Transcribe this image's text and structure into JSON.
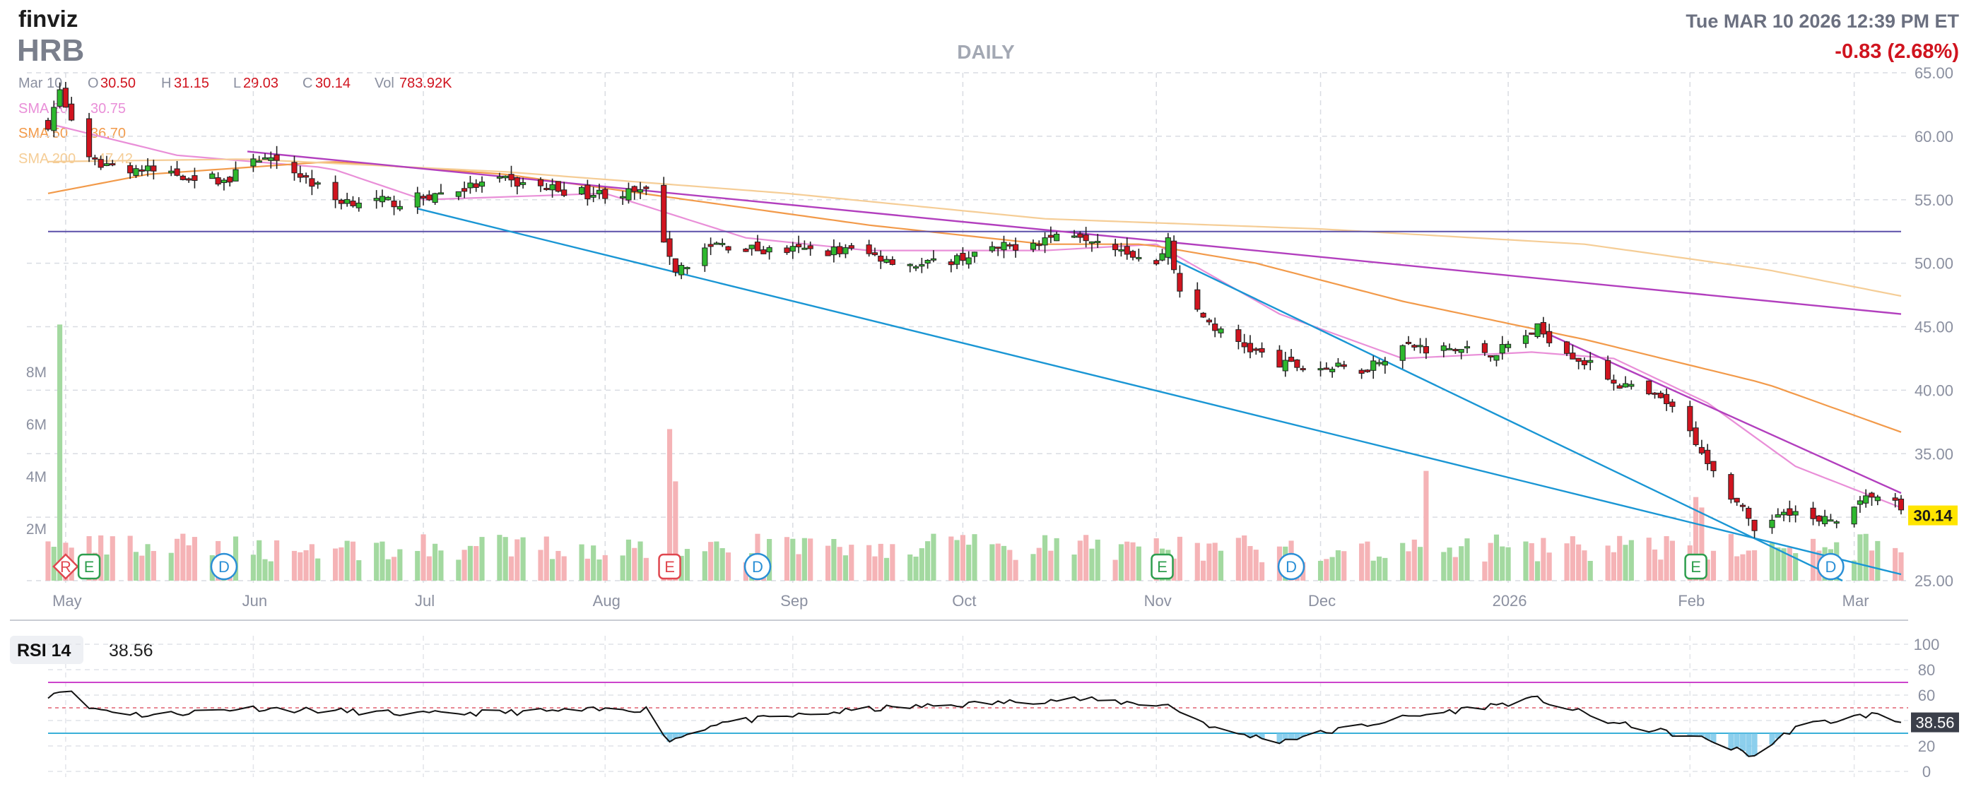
{
  "header": {
    "brand": "finviz",
    "ticker": "HRB",
    "period": "DAILY",
    "datetime": "Tue MAR 10 2026 12:39 PM ET",
    "change": "-0.83 (2.68%)"
  },
  "ohlc": {
    "date": "Mar 10",
    "o_label": "O",
    "o_value": "30.50",
    "h_label": "H",
    "h_value": "31.15",
    "l_label": "L",
    "l_value": "29.03",
    "c_label": "C",
    "c_value": "30.14",
    "vol_label": "Vol",
    "vol_value": "783.92K"
  },
  "sma_legend": [
    {
      "label": "SMA 20",
      "value": "30.75",
      "color": "#e98fd8"
    },
    {
      "label": "SMA 50",
      "value": "36.70",
      "color": "#f29a4a"
    },
    {
      "label": "SMA 200",
      "value": "47.42",
      "color": "#f5cd96"
    }
  ],
  "price_axis": {
    "labels": [
      "65.00",
      "60.00",
      "55.00",
      "50.00",
      "45.00",
      "40.00",
      "35.00",
      "30.00",
      "25.00"
    ],
    "last_price": "30.14"
  },
  "volume_axis": {
    "labels": [
      "8M",
      "6M",
      "4M",
      "2M"
    ]
  },
  "x_axis": {
    "labels": [
      "May",
      "Jun",
      "Jul",
      "Aug",
      "Sep",
      "Oct",
      "Nov",
      "Dec",
      "2026",
      "Feb",
      "Mar"
    ]
  },
  "events": [
    {
      "type": "R",
      "label": "R"
    },
    {
      "type": "E",
      "label": "E"
    },
    {
      "type": "D",
      "label": "D"
    },
    {
      "type": "E",
      "label": "E"
    },
    {
      "type": "D",
      "label": "D"
    },
    {
      "type": "E",
      "label": "E"
    },
    {
      "type": "D",
      "label": "D"
    },
    {
      "type": "E",
      "label": "E"
    },
    {
      "type": "D",
      "label": "D"
    }
  ],
  "rsi": {
    "label": "RSI 14",
    "value": "38.56",
    "axis_labels": [
      "100",
      "80",
      "60",
      "40",
      "20",
      "0"
    ],
    "levels": [
      30,
      70
    ]
  },
  "colors": {
    "up": "#2eb82e",
    "down": "#d0141f",
    "vol_up": "#a3d9a0",
    "vol_down": "#f5b3b6",
    "trend_magenta": "#b23fbe",
    "trend_blue": "#1a96d4",
    "hline": "#5a4fa8",
    "rsi_line": "#111111",
    "rsi_fill": "#6fc3e8",
    "last_price_bg": "#ffe500"
  },
  "chart_data": [
    {
      "type": "candlestick",
      "title": "HRB",
      "subtitle": "DAILY",
      "x_ticks": [
        "May",
        "Jun",
        "Jul",
        "Aug",
        "Sep",
        "Oct",
        "Nov",
        "Dec",
        "2026",
        "Feb",
        "Mar"
      ],
      "ylim": [
        25,
        65
      ],
      "y_ticks": [
        65,
        60,
        55,
        50,
        45,
        40,
        35,
        30,
        25
      ],
      "last_close": 30.14,
      "close_keypoints": [
        {
          "date": "2025-04-28",
          "close": 61.0
        },
        {
          "date": "2025-04-30",
          "close": 63.5
        },
        {
          "date": "2025-05-05",
          "close": 58.0
        },
        {
          "date": "2025-05-15",
          "close": 57.3
        },
        {
          "date": "2025-05-29",
          "close": 56.5
        },
        {
          "date": "2025-06-02",
          "close": 58.5
        },
        {
          "date": "2025-06-10",
          "close": 57.0
        },
        {
          "date": "2025-06-16",
          "close": 55.0
        },
        {
          "date": "2025-06-27",
          "close": 54.8
        },
        {
          "date": "2025-07-14",
          "close": 56.5
        },
        {
          "date": "2025-07-29",
          "close": 55.5
        },
        {
          "date": "2025-08-08",
          "close": 55.5
        },
        {
          "date": "2025-08-11",
          "close": 52.0
        },
        {
          "date": "2025-08-13",
          "close": 49.5
        },
        {
          "date": "2025-08-20",
          "close": 51.5
        },
        {
          "date": "2025-08-28",
          "close": 51.0
        },
        {
          "date": "2025-09-12",
          "close": 51.0
        },
        {
          "date": "2025-09-24",
          "close": 49.8
        },
        {
          "date": "2025-10-06",
          "close": 51.0
        },
        {
          "date": "2025-10-20",
          "close": 52.5
        },
        {
          "date": "2025-10-27",
          "close": 51.5
        },
        {
          "date": "2025-11-03",
          "close": 49.8
        },
        {
          "date": "2025-11-05",
          "close": 52.0
        },
        {
          "date": "2025-11-07",
          "close": 47.5
        },
        {
          "date": "2025-11-14",
          "close": 44.5
        },
        {
          "date": "2025-11-24",
          "close": 42.0
        },
        {
          "date": "2025-12-08",
          "close": 41.6
        },
        {
          "date": "2025-12-15",
          "close": 43.5
        },
        {
          "date": "2025-12-31",
          "close": 43.0
        },
        {
          "date": "2026-01-07",
          "close": 44.8
        },
        {
          "date": "2026-01-14",
          "close": 42.5
        },
        {
          "date": "2026-01-21",
          "close": 40.5
        },
        {
          "date": "2026-01-29",
          "close": 39.0
        },
        {
          "date": "2026-02-03",
          "close": 36.0
        },
        {
          "date": "2026-02-06",
          "close": 33.5
        },
        {
          "date": "2026-02-11",
          "close": 30.5
        },
        {
          "date": "2026-02-13",
          "close": 28.5
        },
        {
          "date": "2026-02-18",
          "close": 30.8
        },
        {
          "date": "2026-02-24",
          "close": 29.5
        },
        {
          "date": "2026-03-02",
          "close": 30.5
        },
        {
          "date": "2026-03-05",
          "close": 31.8
        },
        {
          "date": "2026-03-09",
          "close": 31.0
        },
        {
          "date": "2026-03-10",
          "close": 30.14
        }
      ],
      "sma": [
        {
          "name": "SMA 20",
          "last": 30.75,
          "keypoints": [
            [
              "2025-04-28",
              61
            ],
            [
              "2025-05-20",
              58.5
            ],
            [
              "2025-06-15",
              57.5
            ],
            [
              "2025-07-01",
              55
            ],
            [
              "2025-08-01",
              55.5
            ],
            [
              "2025-08-25",
              52
            ],
            [
              "2025-09-15",
              51
            ],
            [
              "2025-10-15",
              51
            ],
            [
              "2025-11-03",
              51.5
            ],
            [
              "2025-11-24",
              46
            ],
            [
              "2025-12-15",
              42.5
            ],
            [
              "2026-01-06",
              43
            ],
            [
              "2026-01-20",
              42.5
            ],
            [
              "2026-02-05",
              39
            ],
            [
              "2026-02-20",
              34
            ],
            [
              "2026-03-10",
              30.75
            ]
          ]
        },
        {
          "name": "SMA 50",
          "last": 36.7,
          "keypoints": [
            [
              "2025-04-28",
              55.5
            ],
            [
              "2025-05-15",
              57
            ],
            [
              "2025-06-15",
              58
            ],
            [
              "2025-07-15",
              57
            ],
            [
              "2025-08-15",
              55
            ],
            [
              "2025-09-15",
              53
            ],
            [
              "2025-10-15",
              51.5
            ],
            [
              "2025-11-01",
              51.5
            ],
            [
              "2025-11-20",
              50
            ],
            [
              "2025-12-15",
              47
            ],
            [
              "2026-01-15",
              44
            ],
            [
              "2026-02-15",
              40.5
            ],
            [
              "2026-03-10",
              36.7
            ]
          ]
        },
        {
          "name": "SMA 200",
          "last": 47.42,
          "keypoints": [
            [
              "2025-04-28",
              58
            ],
            [
              "2025-06-01",
              58.2
            ],
            [
              "2025-07-15",
              57.2
            ],
            [
              "2025-09-01",
              55.5
            ],
            [
              "2025-10-15",
              53.5
            ],
            [
              "2025-12-01",
              52.7
            ],
            [
              "2026-01-15",
              51.5
            ],
            [
              "2026-02-15",
              49.5
            ],
            [
              "2026-03-10",
              47.42
            ]
          ]
        }
      ],
      "horizontal_line": 52.5,
      "trendlines": [
        {
          "color": "magenta",
          "points": [
            [
              "2025-06-01",
              58.8
            ],
            [
              "2026-03-10",
              46.0
            ]
          ]
        },
        {
          "color": "magenta",
          "points": [
            [
              "2026-01-07",
              44.8
            ],
            [
              "2026-03-10",
              31.9
            ]
          ]
        },
        {
          "color": "blue",
          "points": [
            [
              "2025-06-30",
              54.3
            ],
            [
              "2026-03-10",
              25.5
            ]
          ]
        },
        {
          "color": "blue",
          "points": [
            [
              "2025-11-05",
              50.5
            ],
            [
              "2026-02-28",
              25.0
            ]
          ]
        }
      ]
    },
    {
      "type": "bar",
      "title": "Volume",
      "ylim": [
        0,
        10000000
      ],
      "y_ticks": [
        "8M",
        "6M",
        "4M",
        "2M"
      ],
      "last": "783.92K",
      "spikes": [
        {
          "date": "2025-04-30",
          "volume": 9800000
        },
        {
          "date": "2025-08-12",
          "volume": 5800000
        },
        {
          "date": "2025-08-13",
          "volume": 3800000
        },
        {
          "date": "2025-12-19",
          "volume": 4200000
        },
        {
          "date": "2026-02-03",
          "volume": 3200000
        },
        {
          "date": "2026-02-04",
          "volume": 2800000
        }
      ]
    },
    {
      "type": "line",
      "title": "RSI 14",
      "ylim": [
        0,
        100
      ],
      "y_ticks": [
        100,
        80,
        60,
        40,
        20,
        0
      ],
      "reference_levels": [
        30,
        70
      ],
      "last": 38.56,
      "keypoints": [
        {
          "date": "2025-04-28",
          "value": 60
        },
        {
          "date": "2025-05-01",
          "value": 65
        },
        {
          "date": "2025-05-05",
          "value": 50
        },
        {
          "date": "2025-05-15",
          "value": 44
        },
        {
          "date": "2025-06-01",
          "value": 50
        },
        {
          "date": "2025-07-01",
          "value": 45
        },
        {
          "date": "2025-08-08",
          "value": 49
        },
        {
          "date": "2025-08-12",
          "value": 24
        },
        {
          "date": "2025-08-20",
          "value": 38
        },
        {
          "date": "2025-09-15",
          "value": 49
        },
        {
          "date": "2025-10-20",
          "value": 57
        },
        {
          "date": "2025-11-05",
          "value": 52
        },
        {
          "date": "2025-11-14",
          "value": 32
        },
        {
          "date": "2025-11-24",
          "value": 24
        },
        {
          "date": "2025-12-15",
          "value": 42
        },
        {
          "date": "2026-01-07",
          "value": 57
        },
        {
          "date": "2026-01-20",
          "value": 38
        },
        {
          "date": "2026-02-05",
          "value": 25
        },
        {
          "date": "2026-02-13",
          "value": 12
        },
        {
          "date": "2026-02-20",
          "value": 35
        },
        {
          "date": "2026-03-05",
          "value": 45
        },
        {
          "date": "2026-03-10",
          "value": 38.56
        }
      ]
    }
  ]
}
